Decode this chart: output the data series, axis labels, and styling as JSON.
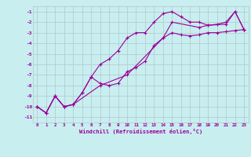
{
  "xlabel": "Windchill (Refroidissement éolien,°C)",
  "background_color": "#c8eef0",
  "grid_color": "#b0c8cc",
  "line_color": "#990099",
  "xlim": [
    -0.5,
    23.5
  ],
  "ylim": [
    -11.5,
    -0.5
  ],
  "xticks": [
    0,
    1,
    2,
    3,
    4,
    5,
    6,
    7,
    8,
    9,
    10,
    11,
    12,
    13,
    14,
    15,
    16,
    17,
    18,
    19,
    20,
    21,
    22,
    23
  ],
  "yticks": [
    -1,
    -2,
    -3,
    -4,
    -5,
    -6,
    -7,
    -8,
    -9,
    -10,
    -11
  ],
  "curve1_x": [
    0,
    1,
    2,
    3,
    4,
    5,
    6,
    7,
    8,
    9,
    10,
    11,
    12,
    13,
    14,
    15,
    16,
    17,
    18,
    19,
    20,
    21,
    22,
    23
  ],
  "curve1_y": [
    -10.0,
    -10.6,
    -9.0,
    -10.0,
    -9.8,
    -8.7,
    -7.2,
    -7.8,
    -8.0,
    -7.8,
    -6.7,
    -6.3,
    -5.7,
    -4.2,
    -3.5,
    -3.0,
    -3.2,
    -3.3,
    -3.2,
    -3.0,
    -3.0,
    -2.9,
    -2.8,
    -2.7
  ],
  "curve2_x": [
    0,
    1,
    2,
    3,
    4,
    5,
    6,
    7,
    8,
    9,
    10,
    11,
    12,
    13,
    14,
    15,
    16,
    17,
    18,
    19,
    20,
    21,
    22,
    23
  ],
  "curve2_y": [
    -10.0,
    -10.6,
    -9.0,
    -10.0,
    -9.8,
    -8.7,
    -7.2,
    -6.0,
    -5.5,
    -4.7,
    -3.5,
    -3.0,
    -3.0,
    -2.0,
    -1.2,
    -1.0,
    -1.5,
    -2.0,
    -2.0,
    -2.3,
    -2.2,
    -2.0,
    -1.0,
    -2.7
  ],
  "curve3_x": [
    0,
    1,
    2,
    3,
    4,
    7,
    10,
    14,
    15,
    18,
    19,
    21,
    22,
    23
  ],
  "curve3_y": [
    -10.0,
    -10.6,
    -9.0,
    -10.0,
    -9.8,
    -8.0,
    -7.0,
    -3.5,
    -2.0,
    -2.5,
    -2.3,
    -2.2,
    -1.0,
    -2.7
  ]
}
